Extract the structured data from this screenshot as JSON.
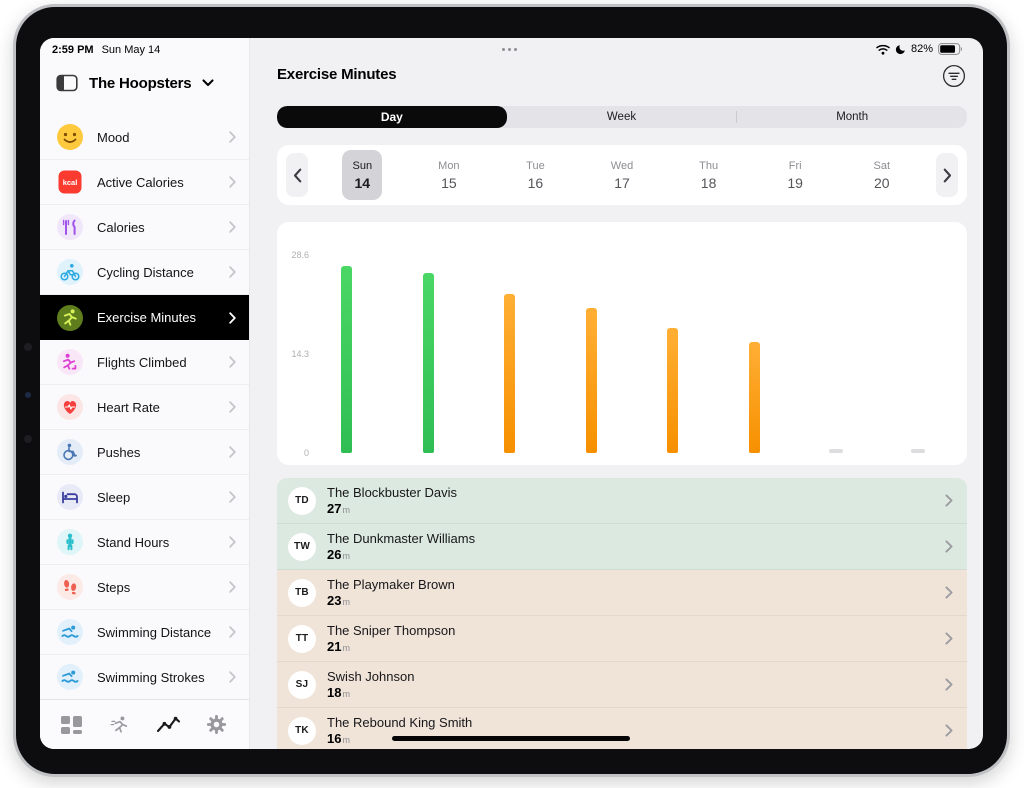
{
  "status_bar": {
    "time": "2:59 PM",
    "date": "Sun May 14",
    "battery": "82%"
  },
  "sidebar": {
    "team_name": "The Hoopsters",
    "items": [
      {
        "label": "Mood",
        "icon": "mood-icon",
        "selected": false
      },
      {
        "label": "Active Calories",
        "icon": "active-calories-icon",
        "selected": false
      },
      {
        "label": "Calories",
        "icon": "calories-icon",
        "selected": false
      },
      {
        "label": "Cycling Distance",
        "icon": "cycling-distance-icon",
        "selected": false
      },
      {
        "label": "Exercise Minutes",
        "icon": "exercise-minutes-icon",
        "selected": true
      },
      {
        "label": "Flights Climbed",
        "icon": "flights-climbed-icon",
        "selected": false
      },
      {
        "label": "Heart Rate",
        "icon": "heart-rate-icon",
        "selected": false
      },
      {
        "label": "Pushes",
        "icon": "pushes-icon",
        "selected": false
      },
      {
        "label": "Sleep",
        "icon": "sleep-icon",
        "selected": false
      },
      {
        "label": "Stand Hours",
        "icon": "stand-hours-icon",
        "selected": false
      },
      {
        "label": "Steps",
        "icon": "steps-icon",
        "selected": false
      },
      {
        "label": "Swimming Distance",
        "icon": "swimming-distance-icon",
        "selected": false
      },
      {
        "label": "Swimming Strokes",
        "icon": "swimming-strokes-icon",
        "selected": false
      }
    ],
    "tab_bar": [
      {
        "icon": "dashboard-grid-icon",
        "active": false
      },
      {
        "icon": "activity-runner-icon",
        "active": false
      },
      {
        "icon": "trends-chart-icon",
        "active": true
      },
      {
        "icon": "settings-gear-icon",
        "active": false
      }
    ]
  },
  "main": {
    "title": "Exercise Minutes",
    "tabs": [
      {
        "label": "Day",
        "selected": true
      },
      {
        "label": "Week",
        "selected": false
      },
      {
        "label": "Month",
        "selected": false
      }
    ],
    "date_strip": {
      "days": [
        {
          "weekday": "Sun",
          "date": "14",
          "selected": true
        },
        {
          "weekday": "Mon",
          "date": "15",
          "selected": false
        },
        {
          "weekday": "Tue",
          "date": "16",
          "selected": false
        },
        {
          "weekday": "Wed",
          "date": "17",
          "selected": false
        },
        {
          "weekday": "Thu",
          "date": "18",
          "selected": false
        },
        {
          "weekday": "Fri",
          "date": "19",
          "selected": false
        },
        {
          "weekday": "Sat",
          "date": "20",
          "selected": false
        }
      ]
    }
  },
  "chart_data": {
    "type": "bar",
    "categories": [
      "The Blockbuster Davis",
      "The Dunkmaster Williams",
      "The Playmaker Brown",
      "The Sniper Thompson",
      "Swish Johnson",
      "The Rebound King Smith",
      "",
      ""
    ],
    "values": [
      27,
      26,
      23,
      21,
      18,
      16,
      null,
      null
    ],
    "bar_colors": [
      "green",
      "green",
      "orange",
      "orange",
      "orange",
      "orange",
      "placeholder",
      "placeholder"
    ],
    "unit": "minutes",
    "ylim": [
      0,
      28.6
    ],
    "yticks": [
      0,
      14.3,
      28.6
    ],
    "grid": false,
    "legend": false
  },
  "members": [
    {
      "initials": "TD",
      "name": "The Blockbuster Davis",
      "value": "27",
      "unit": "m",
      "tint": "green"
    },
    {
      "initials": "TW",
      "name": "The Dunkmaster Williams",
      "value": "26",
      "unit": "m",
      "tint": "green"
    },
    {
      "initials": "TB",
      "name": "The Playmaker Brown",
      "value": "23",
      "unit": "m",
      "tint": "tan"
    },
    {
      "initials": "TT",
      "name": "The Sniper Thompson",
      "value": "21",
      "unit": "m",
      "tint": "tan"
    },
    {
      "initials": "SJ",
      "name": "Swish Johnson",
      "value": "18",
      "unit": "m",
      "tint": "tan"
    },
    {
      "initials": "TK",
      "name": "The Rebound King Smith",
      "value": "16",
      "unit": "m",
      "tint": "tan"
    }
  ],
  "colors": {
    "accent_green": "#34C759",
    "accent_orange": "#FF9500",
    "row_tint_green": "#DCE9E0",
    "row_tint_tan": "#F0E4D9",
    "selected_item_bg": "#000000"
  }
}
